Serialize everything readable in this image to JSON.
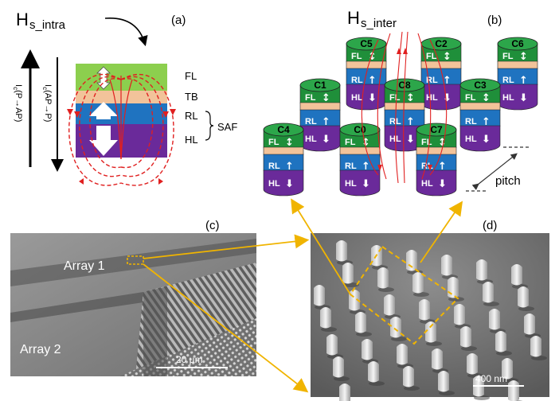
{
  "panel_a": {
    "panel_label": "(a)",
    "field_symbol": "H",
    "field_subscript": "s_intra",
    "current_ap_to_p": "I",
    "current_ap_to_p_sub": "c",
    "current_ap_to_p_rest": "(AP→P)",
    "current_p_to_ap": "I",
    "current_p_to_ap_sub": "c",
    "current_p_to_ap_rest": "(P→AP)",
    "layers": {
      "fl": "FL",
      "tb": "TB",
      "rl": "RL",
      "hl": "HL",
      "saf": "SAF"
    }
  },
  "panel_b": {
    "panel_label": "(b)",
    "field_symbol": "H",
    "field_subscript": "s_inter",
    "pitch_label": "pitch",
    "cells": [
      {
        "id": "C5"
      },
      {
        "id": "C2"
      },
      {
        "id": "C6"
      },
      {
        "id": "C1"
      },
      {
        "id": "C8"
      },
      {
        "id": "C3"
      },
      {
        "id": "C4"
      },
      {
        "id": "C0"
      },
      {
        "id": "C7"
      }
    ],
    "pillar_layers": {
      "fl": "FL",
      "rl": "RL",
      "hl": "HL"
    }
  },
  "panel_c": {
    "panel_label": "(c)",
    "array1_label": "Array 1",
    "array2_label": "Array 2",
    "scale_bar_label": "20 µm"
  },
  "panel_d": {
    "panel_label": "(d)",
    "scale_bar_label": "400 nm"
  },
  "colors": {
    "fl_green": "#22a040",
    "tb_tan": "#f2c39a",
    "rl_blue": "#1f73c0",
    "hl_purple": "#6a2a9a",
    "field_red": "#e02020",
    "accent_orange": "#f0b400"
  }
}
